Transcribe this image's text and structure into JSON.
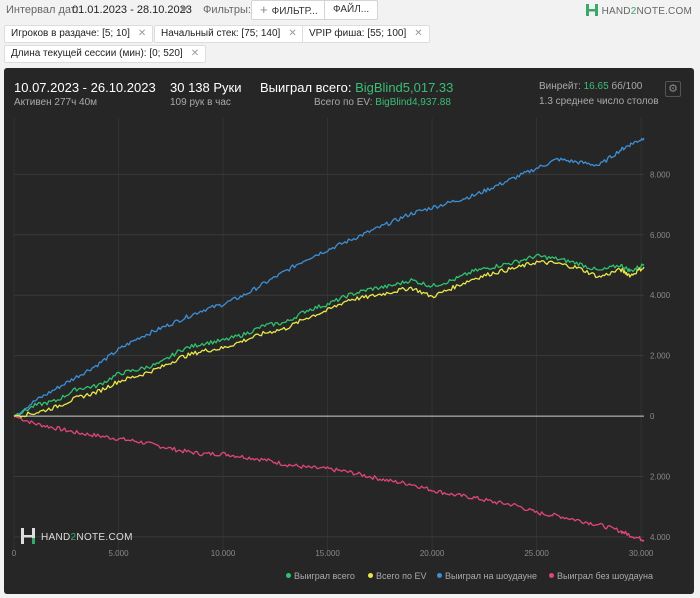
{
  "toolbar": {
    "interval_label": "Интервал дат:",
    "interval_value": "01.01.2023 - 28.10.2023",
    "filters_label": "Фильтры:",
    "filter_button": "ФИЛЬТР...",
    "file_button": "ФАЙЛ...",
    "logo_part1": "HAND",
    "logo_part2": "2",
    "logo_part3": "NOTE.COM"
  },
  "filters": [
    {
      "label": "Игроков в раздаче: [5; 10]"
    },
    {
      "label": "Начальный стек: [75; 140]"
    },
    {
      "label": "VPIP фиша: [55; 100]"
    },
    {
      "label": "Длина текущей сессии (мин): [0; 520]"
    }
  ],
  "summary": {
    "date_range": "10.07.2023 - 26.10.2023",
    "active": "Активен 277ч 40м",
    "hands": "30 138 Руки",
    "hands_per_hour": "109 рук в час",
    "won_label": "Выиграл всего: ",
    "won_value": "BigBlind5,017.33",
    "ev_label": "Всего по EV: ",
    "ev_value": "BigBlind4,937.88",
    "winrate_label": "Винрейт: ",
    "winrate_value": "16.65",
    "winrate_unit": " бб/100",
    "tables": "1.3 среднее число столов"
  },
  "watermark": {
    "part1": "HAND",
    "part2": "2",
    "part3": "NOTE.COM"
  },
  "colors": {
    "total": "#2fc26e",
    "ev": "#e8e84a",
    "showdown": "#3d8fd6",
    "nonshowdown": "#e0457b",
    "panel": "#262626"
  },
  "chart_data": {
    "type": "line",
    "xlim": [
      0,
      30138
    ],
    "ylim": [
      -4300,
      9600
    ],
    "x_ticks": [
      0,
      5000,
      10000,
      15000,
      20000,
      25000,
      30000
    ],
    "x_tick_labels": [
      "0",
      "5.000",
      "10.000",
      "15.000",
      "20.000",
      "25.000",
      "30.000"
    ],
    "y_ticks": [
      -4000,
      -2000,
      0,
      2000,
      4000,
      6000,
      8000
    ],
    "y_tick_labels": [
      "4.000",
      "2.000",
      "0",
      "2.000",
      "4.000",
      "6.000",
      "8.000"
    ],
    "grid": true,
    "legend_position": "bottom-right",
    "series": [
      {
        "name": "Выиграл всего",
        "color_key": "total",
        "x": [
          0,
          1000,
          2000,
          3000,
          4000,
          5000,
          6000,
          7000,
          8000,
          9000,
          10000,
          11000,
          12000,
          13000,
          14000,
          15000,
          16000,
          17000,
          18000,
          19000,
          20000,
          21000,
          22000,
          23000,
          24000,
          25000,
          26000,
          27000,
          28000,
          29000,
          29500,
          30138
        ],
        "y": [
          0,
          350,
          500,
          900,
          1000,
          1400,
          1550,
          1750,
          2200,
          2400,
          2500,
          2700,
          3000,
          3100,
          3500,
          3700,
          4000,
          4200,
          4300,
          4500,
          4300,
          4500,
          4800,
          4950,
          5100,
          5300,
          5200,
          5050,
          4800,
          5000,
          4800,
          5017
        ]
      },
      {
        "name": "Всего по EV",
        "color_key": "ev",
        "x": [
          0,
          1000,
          2000,
          3000,
          4000,
          5000,
          6000,
          7000,
          8000,
          9000,
          10000,
          11000,
          12000,
          13000,
          14000,
          15000,
          16000,
          17000,
          18000,
          19000,
          20000,
          21000,
          22000,
          23000,
          24000,
          25000,
          26000,
          27000,
          28000,
          29000,
          29500,
          30138
        ],
        "y": [
          0,
          100,
          300,
          600,
          800,
          1150,
          1350,
          1600,
          1950,
          2150,
          2250,
          2500,
          2750,
          2900,
          3250,
          3500,
          3850,
          3950,
          4100,
          4250,
          3950,
          4250,
          4550,
          4750,
          4900,
          5100,
          5050,
          4900,
          4600,
          4850,
          4650,
          4938
        ]
      },
      {
        "name": "Выиграл на шоудауне",
        "color_key": "showdown",
        "x": [
          0,
          1000,
          2000,
          3000,
          4000,
          5000,
          6000,
          7000,
          8000,
          9000,
          10000,
          11000,
          12000,
          13000,
          14000,
          15000,
          16000,
          17000,
          18000,
          19000,
          20000,
          21000,
          22000,
          23000,
          24000,
          25000,
          26000,
          27000,
          28000,
          29000,
          29500,
          30138
        ],
        "y": [
          0,
          500,
          900,
          1300,
          1700,
          2200,
          2600,
          2900,
          3200,
          3500,
          3700,
          4000,
          4400,
          4800,
          5200,
          5500,
          5800,
          6100,
          6400,
          6700,
          6900,
          7100,
          7300,
          7600,
          7900,
          8200,
          8500,
          8400,
          8300,
          8800,
          9000,
          9200
        ]
      },
      {
        "name": "Выиграл без шоудауна",
        "color_key": "nonshowdown",
        "x": [
          0,
          1000,
          2000,
          3000,
          4000,
          5000,
          6000,
          7000,
          8000,
          9000,
          10000,
          11000,
          12000,
          13000,
          14000,
          15000,
          16000,
          17000,
          18000,
          19000,
          20000,
          21000,
          22000,
          23000,
          24000,
          25000,
          26000,
          27000,
          28000,
          29000,
          29500,
          30138
        ],
        "y": [
          0,
          -250,
          -400,
          -550,
          -650,
          -750,
          -850,
          -1000,
          -1150,
          -1250,
          -1250,
          -1350,
          -1450,
          -1600,
          -1700,
          -1750,
          -1850,
          -2000,
          -2150,
          -2250,
          -2450,
          -2600,
          -2700,
          -2850,
          -2950,
          -3200,
          -3300,
          -3450,
          -3600,
          -3800,
          -3950,
          -4100
        ]
      }
    ]
  }
}
